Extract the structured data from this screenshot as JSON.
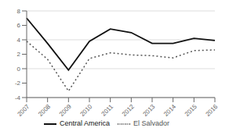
{
  "chart_data": {
    "type": "line",
    "categories": [
      "2007",
      "2008",
      "2009",
      "2010",
      "2011",
      "2012",
      "2013",
      "2014",
      "2015",
      "2016"
    ],
    "series": [
      {
        "name": "El Salvador",
        "color": "#555555",
        "line_style": "dotted",
        "values": [
          3.8,
          1.3,
          -3.1,
          1.4,
          2.2,
          1.9,
          1.8,
          1.5,
          2.5,
          2.6
        ]
      },
      {
        "name": "Central America",
        "color": "#111111",
        "line_style": "solid",
        "values": [
          7.0,
          3.5,
          -0.2,
          3.8,
          5.5,
          5.0,
          3.5,
          3.5,
          4.2,
          3.9
        ]
      }
    ],
    "ylim": [
      -4,
      8
    ],
    "yticks": [
      -4,
      -2,
      0,
      2,
      4,
      6,
      8
    ],
    "grid": true,
    "legend": "bottom"
  }
}
